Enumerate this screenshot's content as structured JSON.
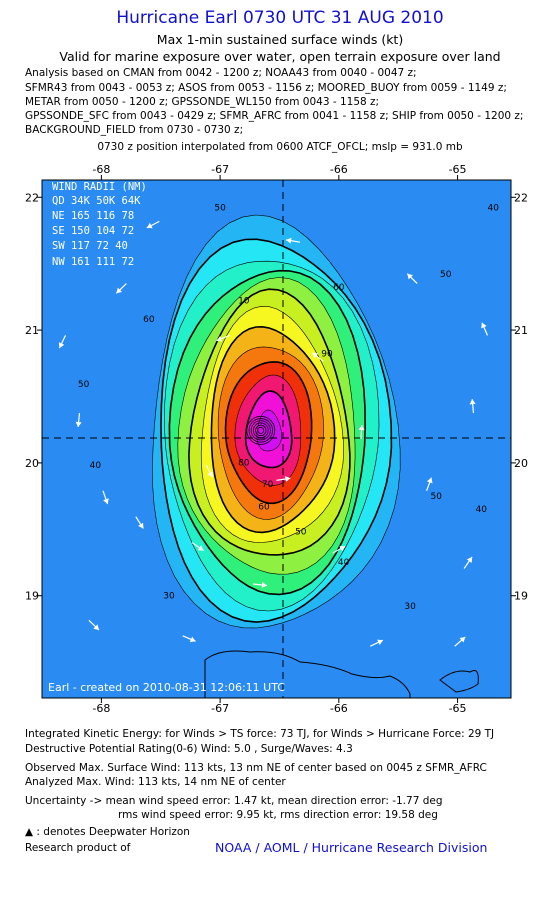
{
  "header": {
    "title": "Hurricane Earl 0730 UTC 31 AUG 2010",
    "subtitle1": "Max 1-min sustained surface winds (kt)",
    "subtitle2": "Valid for marine exposure over water, open terrain exposure over land"
  },
  "analysis_lines": [
    "Analysis based on CMAN from 0042 - 1200 z; NOAA43 from 0040 - 0047 z;",
    "SFMR43 from 0043 - 0053 z; ASOS from 0053 - 1156 z; MOORED_BUOY from 0059 - 1149 z;",
    "METAR from 0050 - 1200 z; GPSSONDE_WL150 from 0043 - 1158 z;",
    "GPSSONDE_SFC from 0043 - 0429 z; SFMR_AFRC from 0041 - 1158 z; SHIP from 0050 - 1200 z;",
    "BACKGROUND_FIELD from 0730 - 0730 z;"
  ],
  "position_line": "0730 z position interpolated from 0600 ATCF_OFCL; mslp = 931.0 mb",
  "chart_data": {
    "type": "heatmap",
    "x_ticks": [
      -68,
      -67,
      -66,
      -65
    ],
    "x_tick_labels": [
      "-68",
      "-67",
      "-66",
      "-65"
    ],
    "y_ticks": [
      22,
      21,
      20,
      19
    ],
    "y_tick_labels": [
      "22",
      "21",
      "20",
      "19"
    ],
    "xlim": [
      -68.5,
      -64.55
    ],
    "ylim": [
      18.23,
      22.13
    ],
    "center": {
      "lon": -66.59,
      "lat": 20.23
    },
    "max_wind": 113,
    "contour_levels": [
      30,
      40,
      50,
      60,
      70,
      80
    ],
    "contour_labels": [
      {
        "text": "50",
        "lon": -67.0,
        "lat": 21.9
      },
      {
        "text": "60",
        "lon": -66.0,
        "lat": 21.3
      },
      {
        "text": "50",
        "lon": -65.1,
        "lat": 21.4
      },
      {
        "text": "40",
        "lon": -64.7,
        "lat": 21.9
      },
      {
        "text": "10",
        "lon": -66.8,
        "lat": 21.2
      },
      {
        "text": "60",
        "lon": -67.6,
        "lat": 21.06
      },
      {
        "text": "50",
        "lon": -68.15,
        "lat": 20.57
      },
      {
        "text": "40",
        "lon": -68.05,
        "lat": 19.96
      },
      {
        "text": "90",
        "lon": -66.1,
        "lat": 20.8
      },
      {
        "text": "80",
        "lon": -66.8,
        "lat": 19.98
      },
      {
        "text": "70",
        "lon": -66.6,
        "lat": 19.82
      },
      {
        "text": "60",
        "lon": -66.63,
        "lat": 19.65
      },
      {
        "text": "50",
        "lon": -66.32,
        "lat": 19.46
      },
      {
        "text": "40",
        "lon": -65.96,
        "lat": 19.23
      },
      {
        "text": "30",
        "lon": -67.43,
        "lat": 18.98
      },
      {
        "text": "30",
        "lon": -65.4,
        "lat": 18.9
      },
      {
        "text": "40",
        "lon": -64.8,
        "lat": 19.63
      },
      {
        "text": "50",
        "lon": -65.18,
        "lat": 19.73
      }
    ],
    "wind_radii": {
      "title": "WIND RADII (NM)",
      "header": [
        "QD",
        "34K",
        "50K",
        "64K"
      ],
      "rows": [
        [
          "NE",
          "165",
          "116",
          "78"
        ],
        [
          "SE",
          "150",
          "104",
          "72"
        ],
        [
          "SW",
          "117",
          "72",
          "40"
        ],
        [
          "NW",
          "161",
          "111",
          "72"
        ]
      ]
    },
    "created_label": "Earl - created on 2010-08-31 12:06:11 UTC",
    "colors": [
      "#2a8cf2",
      "#24b6f4",
      "#24e6f4",
      "#22f0c8",
      "#30f07c",
      "#8ef040",
      "#c8f020",
      "#f6f620",
      "#f4b418",
      "#f4780e",
      "#f03008",
      "#f01870",
      "#f010d8",
      "#d010f0"
    ]
  },
  "footer": {
    "ike": "Integrated Kinetic Energy:  for Winds > TS force: 73 TJ,  for Winds > Hurricane Force: 29 TJ",
    "dpr": "Destructive Potential Rating(0-6)   Wind: 5.0 , Surge/Waves: 4.3",
    "observed": "Observed Max. Surface Wind: 113 kts, 13 nm NE of center based on 0045 z SFMR_AFRC",
    "analyzed": "Analyzed Max. Wind: 113 kts, 14 nm NE of center",
    "uncertainty": "Uncertainty -> mean wind speed error: 1.47 kt,   mean direction error:  -1.77 deg",
    "rms": "rms wind speed error: 9.95 kt,   rms direction error: 19.58 deg",
    "deepwater": ": denotes Deepwater Horizon",
    "research": "Research product of",
    "credit": "NOAA / AOML / Hurricane Research Division"
  }
}
